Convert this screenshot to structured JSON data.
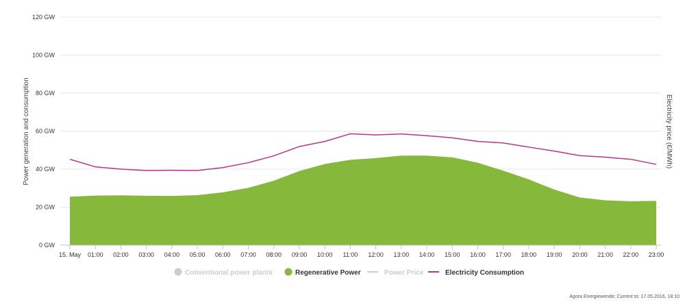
{
  "chart_data": {
    "type": "area",
    "categories": [
      "15. May",
      "01:00",
      "02:00",
      "03:00",
      "04:00",
      "05:00",
      "06:00",
      "07:00",
      "08:00",
      "09:00",
      "10:00",
      "11:00",
      "12:00",
      "13:00",
      "14:00",
      "15:00",
      "16:00",
      "17:00",
      "18:00",
      "19:00",
      "20:00",
      "21:00",
      "22:00",
      "23:00"
    ],
    "ylabel": "Power generation and consumption",
    "ylabel_right": "Electricity price (€/MWh)",
    "ylim": [
      0,
      120
    ],
    "y_ticks": [
      0,
      20,
      40,
      60,
      80,
      100,
      120
    ],
    "y_tick_labels": [
      "0 GW",
      "20 GW",
      "40 GW",
      "60 GW",
      "80 GW",
      "100 GW",
      "120 GW"
    ],
    "grid": true,
    "legend_position": "bottom-center",
    "legend": [
      {
        "label": "Conventional power plants",
        "color": "#cccccc",
        "symbol": "circle",
        "active": false
      },
      {
        "label": "Regenerative Power",
        "color": "#86b83c",
        "symbol": "circle",
        "active": true
      },
      {
        "label": "Power Price",
        "color": "#cccccc",
        "symbol": "line",
        "active": false
      },
      {
        "label": "Electricity Consumption",
        "color": "#b8358a",
        "symbol": "line",
        "active": true
      }
    ],
    "series": [
      {
        "name": "Regenerative Power",
        "kind": "area",
        "color": "#86b83c",
        "values": [
          25.5,
          26.1,
          26.2,
          26.0,
          25.9,
          26.3,
          27.8,
          30.2,
          33.9,
          39.0,
          42.7,
          44.9,
          45.8,
          47.1,
          47.1,
          46.2,
          43.4,
          39.2,
          34.6,
          29.3,
          25.1,
          23.6,
          23.1,
          23.3
        ]
      },
      {
        "name": "Electricity Consumption",
        "kind": "line",
        "color": "#b8358a",
        "values": [
          45.2,
          41.2,
          40.0,
          39.3,
          39.4,
          39.3,
          40.8,
          43.4,
          47.0,
          51.9,
          54.6,
          58.6,
          58.0,
          58.5,
          57.6,
          56.5,
          54.6,
          53.8,
          51.6,
          49.5,
          47.1,
          46.3,
          45.2,
          42.5
        ]
      }
    ]
  },
  "credits": "Agora Energiewende; Current to: 17.05.2016, 18:10"
}
